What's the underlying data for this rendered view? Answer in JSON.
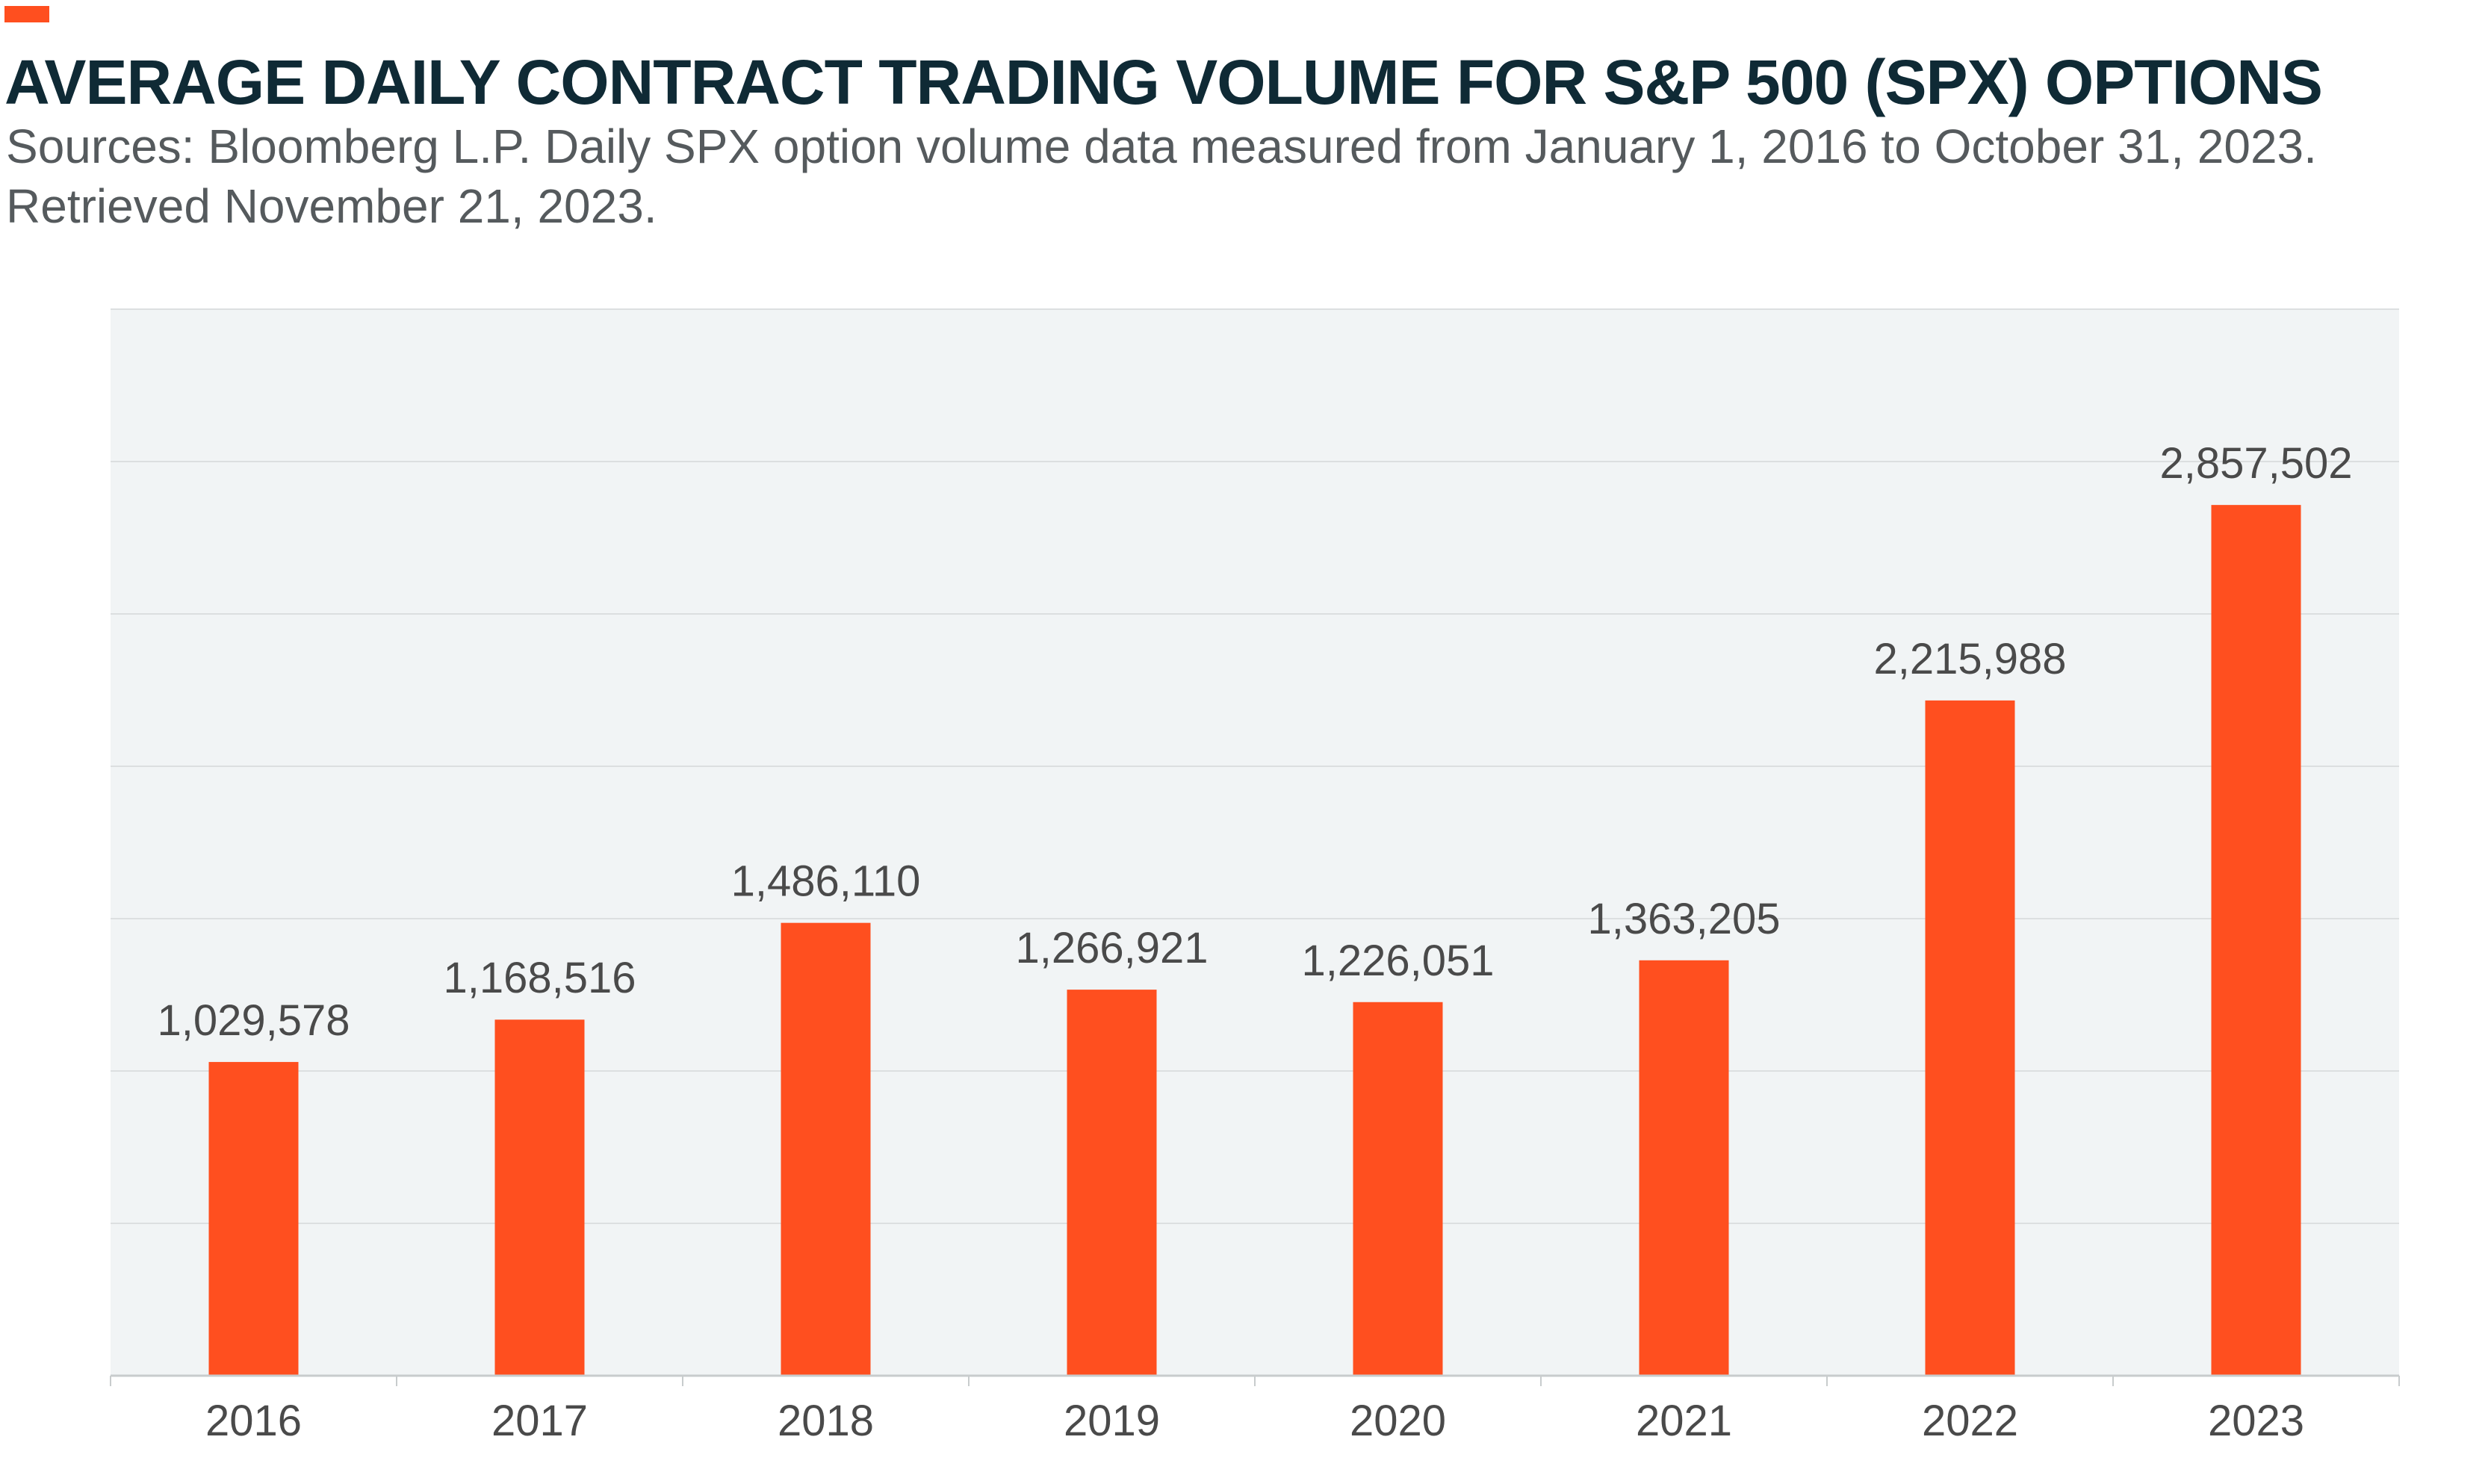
{
  "header": {
    "title": "AVERAGE DAILY CONTRACT TRADING VOLUME FOR S&P 500 (SPX) OPTIONS",
    "subtitle_line1": "Sources: Bloomberg L.P. Daily SPX option volume data measured from January 1, 2016 to October 31, 2023.",
    "subtitle_line2": "Retrieved November 21, 2023."
  },
  "colors": {
    "bar": "#ff4f1f",
    "accent": "#ff4f1f",
    "title": "#0f2a35",
    "subtitle": "#555a5d",
    "plot_background": "#f1f4f5",
    "gridline": "#dcdfe0",
    "label_text": "#4a4a4a"
  },
  "chart_data": {
    "type": "bar",
    "title": "AVERAGE DAILY CONTRACT TRADING VOLUME FOR S&P 500 (SPX) OPTIONS",
    "xlabel": "",
    "ylabel": "",
    "categories": [
      "2016",
      "2017",
      "2018",
      "2019",
      "2020",
      "2021",
      "2022",
      "2023"
    ],
    "values": [
      1029578,
      1168516,
      1486110,
      1266921,
      1226051,
      1363205,
      2215988,
      2857502
    ],
    "data_labels": [
      "1,029,578",
      "1,168,516",
      "1,486,110",
      "1,266,921",
      "1,226,051",
      "1,363,205",
      "2,215,988",
      "2,857,502"
    ],
    "ylim": [
      0,
      3500000
    ],
    "y_gridlines": [
      500000,
      1000000,
      1500000,
      2000000,
      2500000,
      3000000,
      3500000
    ],
    "y_tick_labels_shown": false,
    "grid": true,
    "legend": "none"
  }
}
